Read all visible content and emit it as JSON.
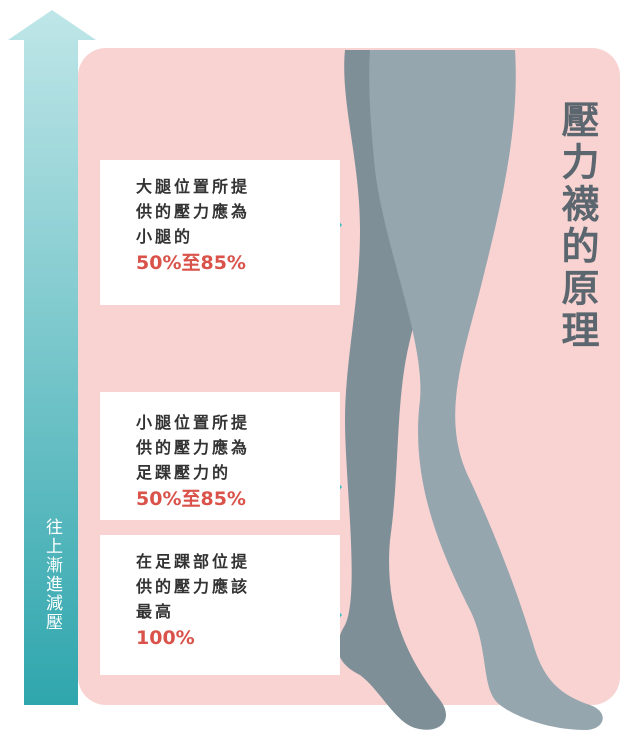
{
  "title": "壓力襪的原理",
  "arrow_label": "往上漸進減壓",
  "boxes": [
    {
      "lines": [
        "大腿位置所提",
        "供的壓力應為",
        "小腿的"
      ],
      "highlight": "50%至85%"
    },
    {
      "lines": [
        "小腿位置所提",
        "供的壓力應為",
        "足踝壓力的"
      ],
      "highlight": "50%至85%"
    },
    {
      "lines": [
        "在足踝部位提",
        "供的壓力應該",
        "最高"
      ],
      "highlight": "100%"
    }
  ]
}
